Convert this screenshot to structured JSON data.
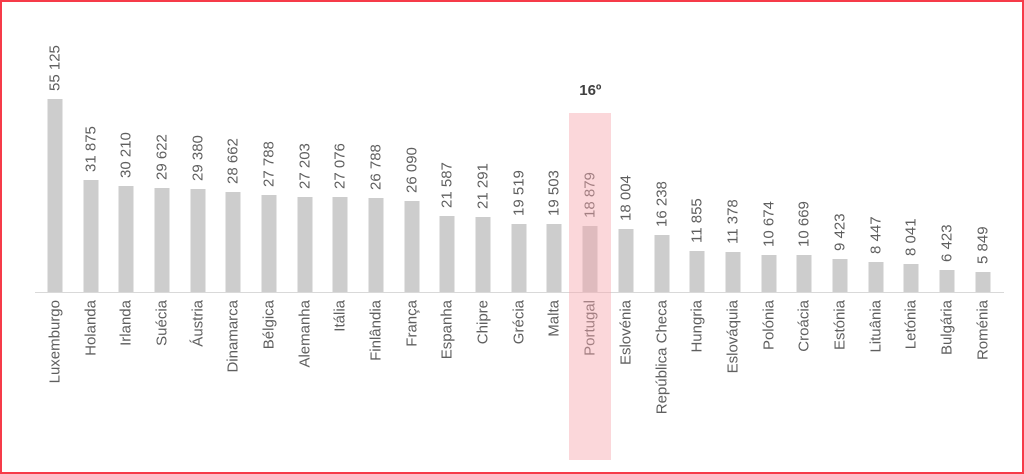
{
  "frame": {
    "background": "#ffffff",
    "border_color": "#f63b49"
  },
  "chart_data": {
    "type": "bar",
    "orientation": "vertical",
    "grid": false,
    "legend": "none",
    "y_axis_visible": false,
    "categories": [
      "Luxemburgo",
      "Holanda",
      "Irlanda",
      "Suécia",
      "Áustria",
      "Dinamarca",
      "Bélgica",
      "Alemanha",
      "Itália",
      "Finlândia",
      "França",
      "Espanha",
      "Chipre",
      "Grécia",
      "Malta",
      "Portugal",
      "Eslovénia",
      "República Checa",
      "Hungria",
      "Eslováquia",
      "Polónia",
      "Croácia",
      "Estónia",
      "Lituânia",
      "Letónia",
      "Bulgária",
      "Roménia"
    ],
    "values": [
      55125,
      31875,
      30210,
      29622,
      29380,
      28662,
      27788,
      27203,
      27076,
      26788,
      26090,
      21587,
      21291,
      19519,
      19503,
      18879,
      18004,
      16238,
      11855,
      11378,
      10674,
      10669,
      9423,
      8447,
      8041,
      6423,
      5849
    ],
    "value_labels": [
      "55 125",
      "31 875",
      "30 210",
      "29 622",
      "29 380",
      "28 662",
      "27 788",
      "27 203",
      "27 076",
      "26 788",
      "26 090",
      "21 587",
      "21 291",
      "19 519",
      "19 503",
      "18 879",
      "18 004",
      "16 238",
      "11 855",
      "11 378",
      "10 674",
      "10 669",
      "9 423",
      "8 447",
      "8 041",
      "6 423",
      "5 849"
    ],
    "highlight": {
      "category": "Portugal",
      "index": 15,
      "annotation": "16º",
      "band_color": "rgba(246, 166, 174, 0.45)",
      "annotation_color": "#404040"
    },
    "bar_color": "#cdcdcd",
    "text_color": "#5f5f5f",
    "axis_line_color": "#d9d9d9"
  }
}
